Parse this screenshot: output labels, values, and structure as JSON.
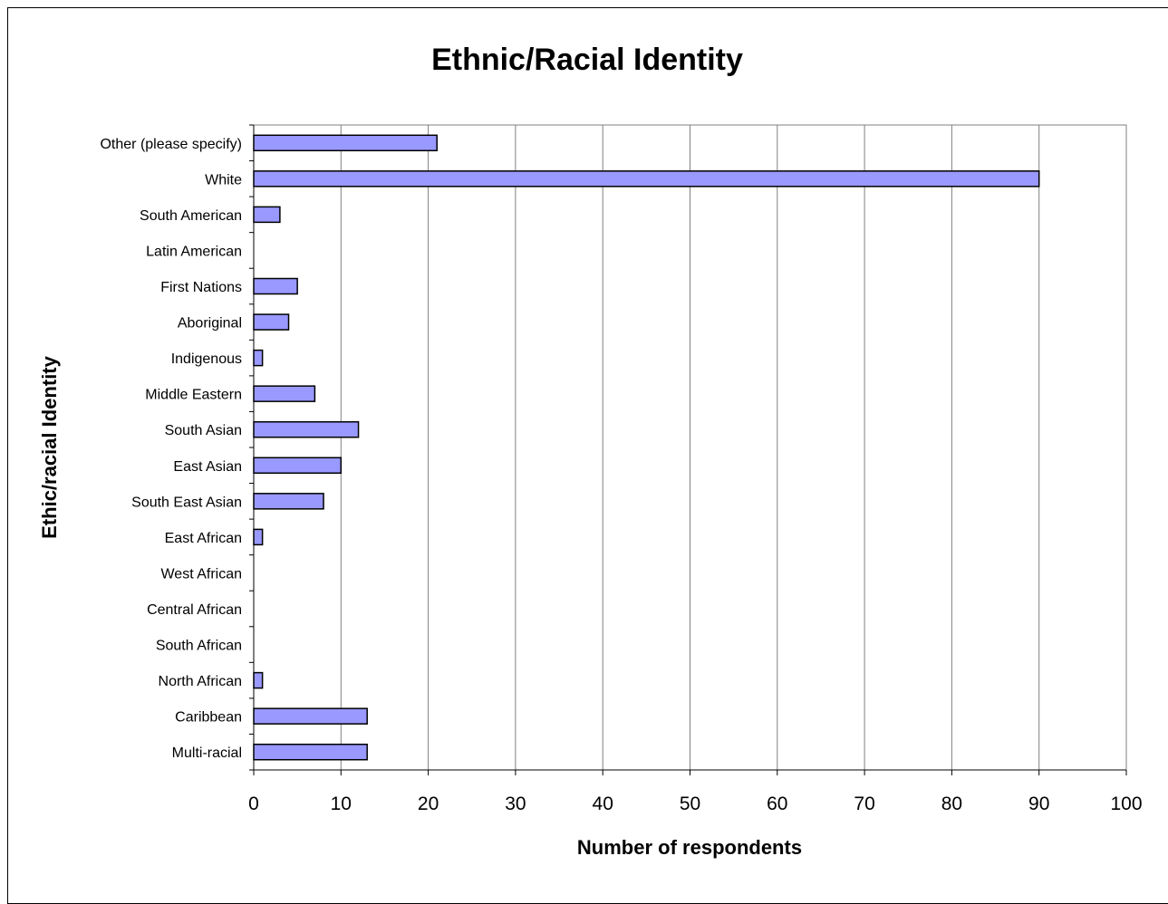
{
  "chart_data": {
    "type": "bar",
    "orientation": "horizontal",
    "title": "Ethnic/Racial Identity",
    "xlabel": "Number of respondents",
    "ylabel": "Ethic/racial Identity",
    "xlim": [
      0,
      100
    ],
    "xticks": [
      0,
      10,
      20,
      30,
      40,
      50,
      60,
      70,
      80,
      90,
      100
    ],
    "grid": "vertical",
    "legend": "none",
    "bar_color": "#9999ff",
    "categories": [
      "Other (please specify)",
      "White",
      "South American",
      "Latin American",
      "First Nations",
      "Aboriginal",
      "Indigenous",
      "Middle Eastern",
      "South Asian",
      "East Asian",
      "South East Asian",
      "East African",
      "West African",
      "Central African",
      "South African",
      "North African",
      "Caribbean",
      "Multi-racial"
    ],
    "values": [
      21,
      90,
      3,
      0,
      5,
      4,
      1,
      7,
      12,
      10,
      8,
      1,
      0,
      0,
      0,
      1,
      13,
      13
    ]
  }
}
